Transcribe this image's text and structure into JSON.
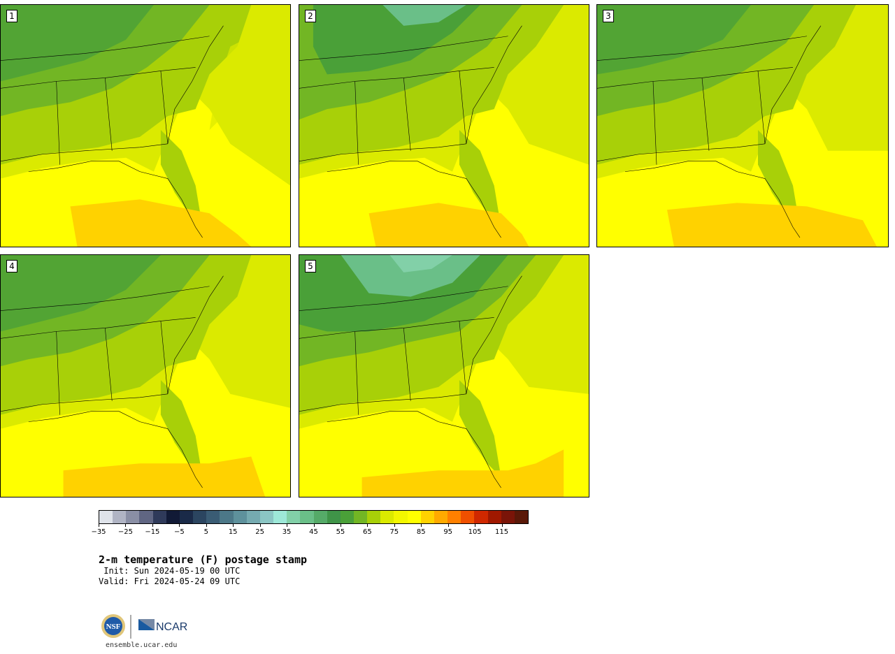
{
  "panels": [
    {
      "label": "1"
    },
    {
      "label": "2"
    },
    {
      "label": "3"
    },
    {
      "label": "4"
    },
    {
      "label": "5"
    }
  ],
  "colorbar": {
    "colors": [
      "#dfe3ea",
      "#b0b4c4",
      "#8a8fa5",
      "#606683",
      "#2f3a5a",
      "#111a36",
      "#1a2a48",
      "#2b4560",
      "#3a5c74",
      "#4c7888",
      "#5e919c",
      "#75aab0",
      "#8bc6c4",
      "#9de8d8",
      "#82d0a8",
      "#6abf88",
      "#55aa68",
      "#3f9448",
      "#4aa038",
      "#72b624",
      "#a8d008",
      "#dbea00",
      "#f3f700",
      "#ffff00",
      "#ffd200",
      "#ffaa00",
      "#ff8000",
      "#f05000",
      "#d02800",
      "#a01800",
      "#7a1408",
      "#5a1808"
    ],
    "tick_labels": [
      "−35",
      "−25",
      "−15",
      "−5",
      "5",
      "15",
      "25",
      "35",
      "45",
      "55",
      "65",
      "75",
      "85",
      "95",
      "105",
      "115"
    ]
  },
  "title": "2-m temperature (F) postage stamp",
  "init": " Init: Sun 2024-05-19 00 UTC",
  "valid": "Valid: Fri 2024-05-24 09 UTC",
  "logos": {
    "nsf": "NSF",
    "ncar": "NCAR"
  },
  "url": "ensemble.ucar.edu"
}
